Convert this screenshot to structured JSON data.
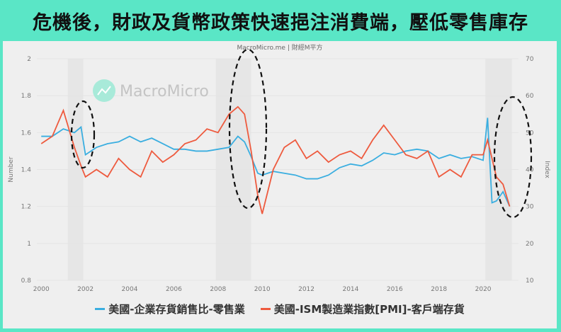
{
  "title": "危機後，財政及貨幣政策快速挹注消費端，壓低零售庫存",
  "source": "MacroMicro.me | 財經M平方",
  "watermark": "MacroMicro",
  "colors": {
    "frame": "#5ae6c6",
    "series_retail": "#3aaee0",
    "series_ism": "#ee5a3e",
    "background": "#efefef",
    "recession": "#e6e6e6"
  },
  "legend": [
    {
      "label": "美國-企業存貨銷售比-零售業",
      "color": "#3aaee0"
    },
    {
      "label": "美國-ISM製造業指數[PMI]-客戶端存貨",
      "color": "#ee5a3e"
    }
  ],
  "chart_data": {
    "type": "line",
    "title": "危機後，財政及貨幣政策快速挹注消費端，壓低零售庫存",
    "xlabel": "",
    "ylabel": "Number",
    "y2label": "Index",
    "ylim": [
      0.8,
      2
    ],
    "y2lim": [
      10,
      70
    ],
    "yticks": [
      "0.8",
      "1",
      "1.2",
      "1.4",
      "1.6",
      "1.8",
      "2"
    ],
    "y2ticks": [
      "10",
      "20",
      "30",
      "40",
      "50",
      "60",
      "70"
    ],
    "xticks": [
      "2000",
      "2002",
      "2004",
      "2006",
      "2008",
      "2010",
      "2012",
      "2014",
      "2016",
      "2018",
      "2020"
    ],
    "recession_bands": [
      [
        2001.2,
        2001.9
      ],
      [
        2007.9,
        2009.5
      ],
      [
        2020.1,
        2021.3
      ]
    ],
    "annotations": [
      "dashed ellipse ~2002",
      "dashed ellipse ~2009",
      "dashed ellipse ~2020"
    ],
    "x": [
      2000.0,
      2000.5,
      2001.0,
      2001.5,
      2001.8,
      2002.0,
      2002.5,
      2003.0,
      2003.5,
      2004.0,
      2004.5,
      2005.0,
      2005.5,
      2006.0,
      2006.5,
      2007.0,
      2007.5,
      2008.0,
      2008.5,
      2008.9,
      2009.2,
      2009.5,
      2009.8,
      2010.0,
      2010.5,
      2011.0,
      2011.5,
      2012.0,
      2012.5,
      2013.0,
      2013.5,
      2014.0,
      2014.5,
      2015.0,
      2015.5,
      2016.0,
      2016.5,
      2017.0,
      2017.5,
      2018.0,
      2018.5,
      2019.0,
      2019.5,
      2020.0,
      2020.2,
      2020.4,
      2020.6,
      2020.9,
      2021.2
    ],
    "series": [
      {
        "name": "美國-企業存貨銷售比-零售業",
        "axis": "left",
        "values": [
          1.58,
          1.58,
          1.62,
          1.6,
          1.63,
          1.48,
          1.52,
          1.54,
          1.55,
          1.58,
          1.55,
          1.57,
          1.54,
          1.51,
          1.51,
          1.5,
          1.5,
          1.51,
          1.52,
          1.58,
          1.55,
          1.47,
          1.38,
          1.37,
          1.39,
          1.38,
          1.37,
          1.35,
          1.35,
          1.37,
          1.41,
          1.43,
          1.42,
          1.45,
          1.49,
          1.48,
          1.5,
          1.51,
          1.5,
          1.46,
          1.48,
          1.46,
          1.47,
          1.45,
          1.68,
          1.22,
          1.23,
          1.28,
          1.2
        ]
      },
      {
        "name": "美國-ISM製造業指數[PMI]-客戶端存貨",
        "axis": "right",
        "values": [
          47,
          49,
          56,
          46,
          41,
          38,
          40,
          38,
          43,
          40,
          38,
          45,
          42,
          44,
          47,
          48,
          51,
          50,
          55,
          57,
          55,
          45,
          33,
          28,
          40,
          46,
          48,
          43,
          45,
          42,
          44,
          45,
          43,
          48,
          52,
          48,
          44,
          43,
          45,
          38,
          40,
          38,
          44,
          44,
          48,
          43,
          38,
          36,
          30
        ]
      }
    ]
  }
}
